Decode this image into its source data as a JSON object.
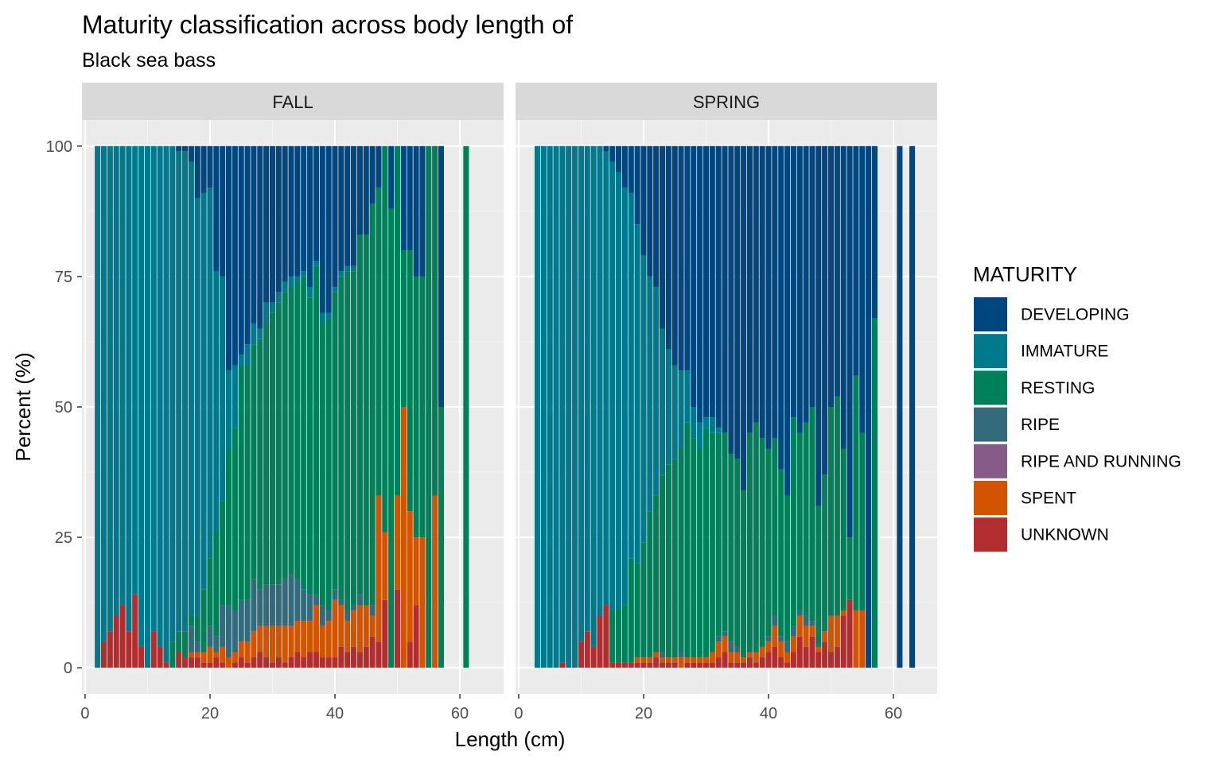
{
  "chart_data": {
    "type": "bar",
    "stacked": "percent",
    "title": "Maturity classification across body length of",
    "subtitle": "Black sea bass",
    "xlabel": "Length (cm)",
    "ylabel": "Percent (%)",
    "xlim": [
      -0.5,
      67
    ],
    "ylim": [
      -5,
      105
    ],
    "x_ticks": [
      0,
      20,
      40,
      60
    ],
    "y_ticks": [
      0,
      25,
      50,
      75,
      100
    ],
    "grid": true,
    "legend_title": "MATURITY",
    "legend_position": "right",
    "categories": [
      "DEVELOPING",
      "IMMATURE",
      "RESTING",
      "RIPE",
      "RIPE AND RUNNING",
      "SPENT",
      "UNKNOWN"
    ],
    "colors": {
      "DEVELOPING": "#00467f",
      "IMMATURE": "#00798c",
      "RESTING": "#008059",
      "RIPE": "#336b7c",
      "RIPE AND RUNNING": "#845c87",
      "SPENT": "#d35400",
      "UNKNOWN": "#b22e2e"
    },
    "panels": [
      {
        "name": "FALL",
        "bars": [
          {
            "x": 2,
            "UNKNOWN": 0,
            "IMMATURE": 100
          },
          {
            "x": 3,
            "UNKNOWN": 5,
            "IMMATURE": 95
          },
          {
            "x": 4,
            "UNKNOWN": 7,
            "IMMATURE": 93
          },
          {
            "x": 5,
            "UNKNOWN": 10,
            "IMMATURE": 90
          },
          {
            "x": 6,
            "UNKNOWN": 12,
            "IMMATURE": 88
          },
          {
            "x": 7,
            "UNKNOWN": 7,
            "IMMATURE": 93
          },
          {
            "x": 8,
            "UNKNOWN": 14,
            "IMMATURE": 86
          },
          {
            "x": 9,
            "UNKNOWN": 4,
            "IMMATURE": 96
          },
          {
            "x": 10,
            "UNKNOWN": 0,
            "IMMATURE": 100
          },
          {
            "x": 11,
            "UNKNOWN": 7,
            "IMMATURE": 93
          },
          {
            "x": 12,
            "UNKNOWN": 4,
            "IMMATURE": 96
          },
          {
            "x": 13,
            "UNKNOWN": 1,
            "IMMATURE": 99
          },
          {
            "x": 14,
            "RESTING": 5,
            "IMMATURE": 95
          },
          {
            "x": 15,
            "UNKNOWN": 3,
            "RESTING": 4,
            "IMMATURE": 92,
            "DEVELOPING": 1
          },
          {
            "x": 16,
            "UNKNOWN": 2,
            "RESTING": 5,
            "IMMATURE": 92,
            "DEVELOPING": 1
          },
          {
            "x": 17,
            "UNKNOWN": 2,
            "SPENT": 1,
            "RIPE": 5,
            "RESTING": 2,
            "IMMATURE": 87,
            "DEVELOPING": 3
          },
          {
            "x": 18,
            "UNKNOWN": 2,
            "SPENT": 1,
            "RIPE": 2,
            "RESTING": 5,
            "IMMATURE": 80,
            "DEVELOPING": 10
          },
          {
            "x": 19,
            "UNKNOWN": 1,
            "SPENT": 2,
            "RESTING": 12,
            "IMMATURE": 76,
            "DEVELOPING": 9
          },
          {
            "x": 20,
            "UNKNOWN": 1,
            "SPENT": 3,
            "RIPE": 4,
            "RESTING": 13,
            "IMMATURE": 71,
            "DEVELOPING": 8
          },
          {
            "x": 21,
            "UNKNOWN": 2,
            "SPENT": 1,
            "RIPE": 3,
            "RESTING": 20,
            "IMMATURE": 50,
            "DEVELOPING": 24
          },
          {
            "x": 22,
            "UNKNOWN": 1,
            "SPENT": 3,
            "RIPE": 8,
            "RESTING": 20,
            "IMMATURE": 43,
            "DEVELOPING": 25
          },
          {
            "x": 23,
            "UNKNOWN": 0,
            "SPENT": 2,
            "RIPE": 10,
            "RESTING": 30,
            "IMMATURE": 15,
            "DEVELOPING": 43
          },
          {
            "x": 24,
            "UNKNOWN": 1,
            "SPENT": 2,
            "RIPE": 8,
            "RESTING": 35,
            "IMMATURE": 12,
            "DEVELOPING": 42
          },
          {
            "x": 25,
            "UNKNOWN": 2,
            "SPENT": 3,
            "RIPE": 8,
            "RESTING": 45,
            "IMMATURE": 2,
            "DEVELOPING": 40
          },
          {
            "x": 26,
            "UNKNOWN": 1,
            "SPENT": 4,
            "RIPE": 8,
            "RESTING": 45,
            "IMMATURE": 4,
            "DEVELOPING": 38
          },
          {
            "x": 27,
            "UNKNOWN": 2,
            "SPENT": 5,
            "RIPE": 10,
            "RESTING": 45,
            "IMMATURE": 4,
            "DEVELOPING": 34
          },
          {
            "x": 28,
            "UNKNOWN": 3,
            "SPENT": 5,
            "RIPE": 7,
            "RESTING": 48,
            "IMMATURE": 2,
            "DEVELOPING": 35
          },
          {
            "x": 29,
            "UNKNOWN": 2,
            "SPENT": 6,
            "RIPE": 8,
            "RESTING": 50,
            "IMMATURE": 4,
            "DEVELOPING": 30
          },
          {
            "x": 30,
            "UNKNOWN": 1,
            "SPENT": 7,
            "RIPE": 8,
            "RESTING": 52,
            "IMMATURE": 2,
            "DEVELOPING": 30
          },
          {
            "x": 31,
            "UNKNOWN": 2,
            "SPENT": 6,
            "RIPE": 8,
            "RESTING": 54,
            "IMMATURE": 2,
            "DEVELOPING": 28
          },
          {
            "x": 32,
            "UNKNOWN": 1,
            "SPENT": 7,
            "RIPE": 9,
            "RESTING": 55,
            "IMMATURE": 2,
            "DEVELOPING": 26
          },
          {
            "x": 33,
            "UNKNOWN": 2,
            "SPENT": 6,
            "RIPE": 10,
            "RESTING": 55,
            "IMMATURE": 2,
            "DEVELOPING": 25
          },
          {
            "x": 34,
            "UNKNOWN": 3,
            "SPENT": 6,
            "RIPE": 8,
            "RESTING": 57,
            "IMMATURE": 1,
            "DEVELOPING": 25
          },
          {
            "x": 35,
            "UNKNOWN": 2,
            "SPENT": 7,
            "RIPE": 6,
            "RESTING": 60,
            "IMMATURE": 1,
            "DEVELOPING": 24
          },
          {
            "x": 36,
            "UNKNOWN": 3,
            "SPENT": 6,
            "RIPE": 5,
            "RESTING": 57,
            "IMMATURE": 2,
            "DEVELOPING": 27
          },
          {
            "x": 37,
            "UNKNOWN": 3,
            "SPENT": 9,
            "RIPE": 2,
            "RESTING": 63,
            "IMMATURE": 1,
            "DEVELOPING": 22
          },
          {
            "x": 38,
            "UNKNOWN": 2,
            "SPENT": 6,
            "RIPE": 4,
            "RESTING": 54,
            "IMMATURE": 2,
            "DEVELOPING": 32
          },
          {
            "x": 39,
            "UNKNOWN": 2,
            "SPENT": 7,
            "RIPE": 2,
            "RESTING": 56,
            "IMMATURE": 1,
            "DEVELOPING": 32
          },
          {
            "x": 40,
            "UNKNOWN": 2,
            "SPENT": 11,
            "RIPE": 2,
            "RESTING": 57,
            "IMMATURE": 1,
            "DEVELOPING": 27
          },
          {
            "x": 41,
            "UNKNOWN": 4,
            "SPENT": 8,
            "RIPE": 1,
            "RESTING": 62,
            "IMMATURE": 1,
            "DEVELOPING": 24
          },
          {
            "x": 42,
            "UNKNOWN": 3,
            "SPENT": 6,
            "RIPE": 2,
            "RESTING": 65,
            "IMMATURE": 1,
            "DEVELOPING": 23
          },
          {
            "x": 43,
            "UNKNOWN": 4,
            "SPENT": 7,
            "RIPE": 1,
            "RESTING": 64,
            "IMMATURE": 1,
            "DEVELOPING": 23
          },
          {
            "x": 44,
            "UNKNOWN": 3,
            "SPENT": 9,
            "RIPE": 2,
            "RESTING": 69,
            "DEVELOPING": 17
          },
          {
            "x": 45,
            "UNKNOWN": 4,
            "SPENT": 8,
            "RESTING": 71,
            "DEVELOPING": 17
          },
          {
            "x": 46,
            "UNKNOWN": 6,
            "SPENT": 4,
            "RIPE": 2,
            "RESTING": 77,
            "DEVELOPING": 11
          },
          {
            "x": 47,
            "UNKNOWN": 5,
            "SPENT": 28,
            "RESTING": 59,
            "DEVELOPING": 8
          },
          {
            "x": 48,
            "UNKNOWN": 13,
            "SPENT": 13,
            "RESTING": 74,
            "DEVELOPING": 0
          },
          {
            "x": 49,
            "UNKNOWN": 0,
            "SPENT": 0,
            "RESTING": 88,
            "DEVELOPING": 12
          },
          {
            "x": 50,
            "UNKNOWN": 15,
            "SPENT": 18,
            "RESTING": 67,
            "DEVELOPING": 0
          },
          {
            "x": 51,
            "UNKNOWN": 0,
            "SPENT": 50,
            "RESTING": 30,
            "DEVELOPING": 20
          },
          {
            "x": 52,
            "UNKNOWN": 5,
            "SPENT": 25,
            "RESTING": 50,
            "DEVELOPING": 20
          },
          {
            "x": 53,
            "UNKNOWN": 12,
            "SPENT": 13,
            "RESTING": 50,
            "DEVELOPING": 25
          },
          {
            "x": 54,
            "UNKNOWN": 0,
            "SPENT": 25,
            "RESTING": 50,
            "DEVELOPING": 25
          },
          {
            "x": 55,
            "UNKNOWN": 0,
            "SPENT": 0,
            "RESTING": 100,
            "DEVELOPING": 0
          },
          {
            "x": 56,
            "UNKNOWN": 0,
            "SPENT": 33,
            "RESTING": 67,
            "DEVELOPING": 0
          },
          {
            "x": 57,
            "RESTING": 50,
            "DEVELOPING": 50
          },
          {
            "x": 61,
            "RESTING": 100
          }
        ]
      },
      {
        "name": "SPRING",
        "bars": [
          {
            "x": 3,
            "IMMATURE": 100
          },
          {
            "x": 4,
            "IMMATURE": 100
          },
          {
            "x": 5,
            "IMMATURE": 100
          },
          {
            "x": 6,
            "IMMATURE": 100
          },
          {
            "x": 7,
            "UNKNOWN": 1,
            "IMMATURE": 99
          },
          {
            "x": 8,
            "IMMATURE": 100
          },
          {
            "x": 9,
            "IMMATURE": 100
          },
          {
            "x": 10,
            "UNKNOWN": 5,
            "IMMATURE": 95
          },
          {
            "x": 11,
            "UNKNOWN": 7,
            "IMMATURE": 93
          },
          {
            "x": 12,
            "UNKNOWN": 4,
            "IMMATURE": 96
          },
          {
            "x": 13,
            "UNKNOWN": 10,
            "IMMATURE": 90
          },
          {
            "x": 14,
            "UNKNOWN": 12,
            "IMMATURE": 87,
            "DEVELOPING": 1
          },
          {
            "x": 15,
            "UNKNOWN": 1,
            "RESTING": 10,
            "IMMATURE": 86,
            "DEVELOPING": 3
          },
          {
            "x": 16,
            "UNKNOWN": 1,
            "RESTING": 10,
            "IMMATURE": 84,
            "DEVELOPING": 5
          },
          {
            "x": 17,
            "UNKNOWN": 1,
            "RESTING": 11,
            "IMMATURE": 80,
            "DEVELOPING": 8
          },
          {
            "x": 18,
            "UNKNOWN": 1,
            "RESTING": 20,
            "IMMATURE": 70,
            "DEVELOPING": 9
          },
          {
            "x": 19,
            "UNKNOWN": 1,
            "SPENT": 1,
            "RESTING": 18,
            "IMMATURE": 65,
            "DEVELOPING": 15
          },
          {
            "x": 20,
            "UNKNOWN": 1,
            "SPENT": 1,
            "RESTING": 22,
            "IMMATURE": 55,
            "DEVELOPING": 21
          },
          {
            "x": 21,
            "UNKNOWN": 1,
            "SPENT": 1,
            "RESTING": 28,
            "IMMATURE": 45,
            "DEVELOPING": 25
          },
          {
            "x": 22,
            "UNKNOWN": 2,
            "SPENT": 1,
            "RESTING": 30,
            "IMMATURE": 40,
            "DEVELOPING": 27
          },
          {
            "x": 23,
            "UNKNOWN": 1,
            "SPENT": 1,
            "RIPE": 1,
            "RESTING": 34,
            "IMMATURE": 28,
            "DEVELOPING": 35
          },
          {
            "x": 24,
            "UNKNOWN": 1,
            "SPENT": 1,
            "RESTING": 37,
            "IMMATURE": 22,
            "DEVELOPING": 39
          },
          {
            "x": 25,
            "UNKNOWN": 1,
            "SPENT": 1,
            "RESTING": 38,
            "IMMATURE": 18,
            "DEVELOPING": 42
          },
          {
            "x": 26,
            "UNKNOWN": 0,
            "SPENT": 2,
            "RIPE": 1,
            "RESTING": 39,
            "IMMATURE": 15,
            "DEVELOPING": 43
          },
          {
            "x": 27,
            "UNKNOWN": 1,
            "SPENT": 1,
            "RESTING": 45,
            "IMMATURE": 10,
            "DEVELOPING": 43
          },
          {
            "x": 28,
            "UNKNOWN": 1,
            "SPENT": 1,
            "RESTING": 42,
            "IMMATURE": 6,
            "DEVELOPING": 50
          },
          {
            "x": 29,
            "UNKNOWN": 1,
            "SPENT": 1,
            "RESTING": 40,
            "IMMATURE": 5,
            "DEVELOPING": 53
          },
          {
            "x": 30,
            "UNKNOWN": 1,
            "SPENT": 1,
            "RESTING": 44,
            "IMMATURE": 2,
            "DEVELOPING": 52
          },
          {
            "x": 31,
            "UNKNOWN": 1,
            "SPENT": 2,
            "RESTING": 42,
            "IMMATURE": 3,
            "DEVELOPING": 52
          },
          {
            "x": 32,
            "UNKNOWN": 2,
            "SPENT": 3,
            "RIPE": 1,
            "RESTING": 39,
            "IMMATURE": 1,
            "DEVELOPING": 54
          },
          {
            "x": 33,
            "UNKNOWN": 3,
            "SPENT": 3,
            "RIPE": 1,
            "RESTING": 38,
            "DEVELOPING": 55
          },
          {
            "x": 34,
            "UNKNOWN": 1,
            "SPENT": 2,
            "RIPE": 2,
            "RESTING": 36,
            "DEVELOPING": 59
          },
          {
            "x": 35,
            "UNKNOWN": 1,
            "SPENT": 2,
            "RIPE": 1,
            "RESTING": 36,
            "DEVELOPING": 60
          },
          {
            "x": 36,
            "UNKNOWN": 1,
            "SPENT": 1,
            "RESTING": 32,
            "DEVELOPING": 66
          },
          {
            "x": 37,
            "UNKNOWN": 2,
            "SPENT": 1,
            "RESTING": 42,
            "DEVELOPING": 55
          },
          {
            "x": 38,
            "UNKNOWN": 1,
            "SPENT": 2,
            "RESTING": 44,
            "DEVELOPING": 53
          },
          {
            "x": 39,
            "UNKNOWN": 2,
            "SPENT": 2,
            "RESTING": 40,
            "DEVELOPING": 56
          },
          {
            "x": 40,
            "UNKNOWN": 3,
            "SPENT": 2,
            "RIPE": 1,
            "RESTING": 36,
            "DEVELOPING": 58
          },
          {
            "x": 41,
            "UNKNOWN": 4,
            "SPENT": 4,
            "RIPE": 2,
            "RESTING": 34,
            "DEVELOPING": 56
          },
          {
            "x": 42,
            "UNKNOWN": 2,
            "SPENT": 3,
            "RIPE": 1,
            "RESTING": 32,
            "DEVELOPING": 62
          },
          {
            "x": 43,
            "UNKNOWN": 1,
            "SPENT": 2,
            "RIPE": 2,
            "RESTING": 28,
            "DEVELOPING": 67
          },
          {
            "x": 44,
            "UNKNOWN": 3,
            "SPENT": 3,
            "RIPE": 2,
            "RESTING": 40,
            "DEVELOPING": 52
          },
          {
            "x": 45,
            "UNKNOWN": 6,
            "SPENT": 4,
            "RIPE": 1,
            "RESTING": 34,
            "DEVELOPING": 55
          },
          {
            "x": 46,
            "UNKNOWN": 4,
            "SPENT": 4,
            "RIPE": 2,
            "RESTING": 37,
            "DEVELOPING": 53
          },
          {
            "x": 47,
            "UNKNOWN": 6,
            "SPENT": 2,
            "RIPE": 1,
            "RESTING": 41,
            "DEVELOPING": 50
          },
          {
            "x": 48,
            "UNKNOWN": 3,
            "SPENT": 1,
            "RESTING": 27,
            "DEVELOPING": 69
          },
          {
            "x": 49,
            "UNKNOWN": 5,
            "SPENT": 2,
            "RESTING": 30,
            "DEVELOPING": 63
          },
          {
            "x": 50,
            "UNKNOWN": 3,
            "SPENT": 7,
            "RESTING": 40,
            "DEVELOPING": 50
          },
          {
            "x": 51,
            "UNKNOWN": 4,
            "SPENT": 6,
            "RESTING": 42,
            "DEVELOPING": 48
          },
          {
            "x": 52,
            "UNKNOWN": 10,
            "SPENT": 1,
            "RESTING": 31,
            "DEVELOPING": 58
          },
          {
            "x": 53,
            "UNKNOWN": 13,
            "SPENT": 0,
            "RESTING": 12,
            "DEVELOPING": 75
          },
          {
            "x": 54,
            "UNKNOWN": 0,
            "SPENT": 11,
            "RESTING": 45,
            "DEVELOPING": 44
          },
          {
            "x": 55,
            "UNKNOWN": 0,
            "SPENT": 11,
            "RESTING": 34,
            "DEVELOPING": 55
          },
          {
            "x": 56,
            "RESTING": 0,
            "DEVELOPING": 100
          },
          {
            "x": 57,
            "RESTING": 67,
            "DEVELOPING": 33
          },
          {
            "x": 61,
            "DEVELOPING": 100
          },
          {
            "x": 63,
            "DEVELOPING": 100
          }
        ]
      }
    ]
  }
}
